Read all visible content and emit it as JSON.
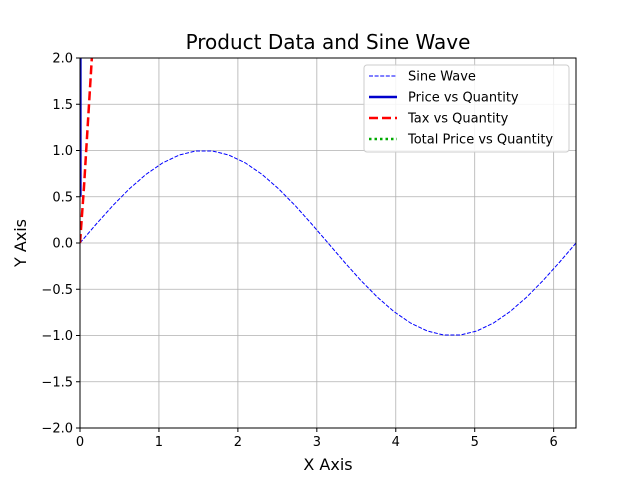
{
  "chart_data": {
    "type": "line",
    "title": "Product Data and Sine Wave",
    "xlabel": "X Axis",
    "ylabel": "Y Axis",
    "xlim": [
      0,
      6.283
    ],
    "ylim": [
      -2.0,
      2.0
    ],
    "xticks": [
      0,
      1,
      2,
      3,
      4,
      5,
      6
    ],
    "xtick_labels": [
      "0",
      "1",
      "2",
      "3",
      "4",
      "5",
      "6"
    ],
    "yticks": [
      -2.0,
      -1.5,
      -1.0,
      -0.5,
      0.0,
      0.5,
      1.0,
      1.5,
      2.0
    ],
    "ytick_labels": [
      "−2.0",
      "−1.5",
      "−1.0",
      "−0.5",
      "0.0",
      "0.5",
      "1.0",
      "1.5",
      "2.0"
    ],
    "grid": true,
    "legend_position": "top-right",
    "series": [
      {
        "name": "Sine Wave",
        "color": "#0000ff",
        "style": "dashed",
        "x": [
          0,
          0.209,
          0.419,
          0.628,
          0.838,
          1.047,
          1.257,
          1.466,
          1.676,
          1.885,
          2.094,
          2.304,
          2.513,
          2.723,
          2.932,
          3.142,
          3.351,
          3.56,
          3.77,
          3.979,
          4.189,
          4.398,
          4.608,
          4.817,
          5.027,
          5.236,
          5.445,
          5.655,
          5.864,
          6.074,
          6.283
        ],
        "y": [
          0,
          0.208,
          0.407,
          0.588,
          0.743,
          0.866,
          0.951,
          0.995,
          0.995,
          0.951,
          0.866,
          0.743,
          0.588,
          0.407,
          0.208,
          0,
          -0.208,
          -0.407,
          -0.588,
          -0.743,
          -0.866,
          -0.951,
          -0.995,
          -0.995,
          -0.951,
          -0.866,
          -0.743,
          -0.588,
          -0.407,
          -0.208,
          0
        ]
      },
      {
        "name": "Price vs Quantity",
        "color": "#0000cc",
        "style": "solid",
        "x": [
          0.005,
          0.005
        ],
        "y": [
          2.0,
          0.5
        ]
      },
      {
        "name": "Tax vs Quantity",
        "color": "#ff0000",
        "style": "dashed",
        "x": [
          0,
          0.05,
          0.1,
          0.15
        ],
        "y": [
          0,
          0.6,
          1.3,
          2.0
        ]
      },
      {
        "name": "Total Price vs Quantity",
        "color": "#00aa00",
        "style": "dotted",
        "x": [],
        "y": []
      }
    ]
  }
}
